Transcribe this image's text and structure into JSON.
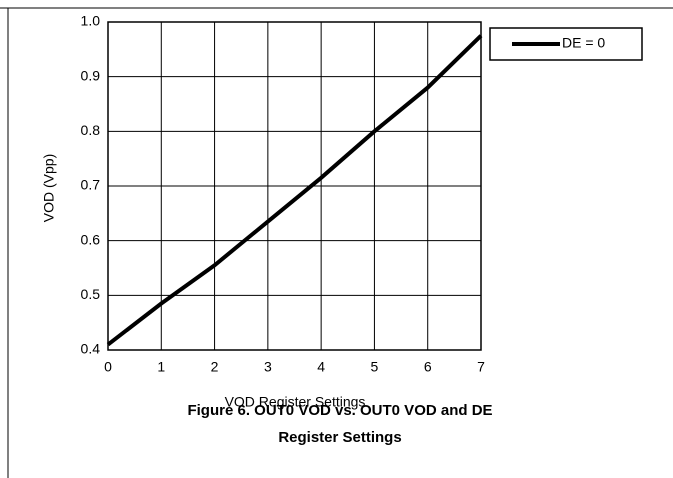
{
  "chart_data": {
    "type": "line",
    "title": "Figure 6. OUT0 VOD vs. OUT0 VOD and DE Register Settings",
    "xlabel": "VOD Register Settings",
    "ylabel": "VOD (Vpp)",
    "x": [
      0,
      1,
      2,
      3,
      4,
      5,
      6,
      7
    ],
    "series": [
      {
        "name": "DE = 0",
        "color": "#000000",
        "values": [
          0.41,
          0.485,
          0.555,
          0.635,
          0.715,
          0.8,
          0.88,
          0.975
        ]
      }
    ],
    "xlim": [
      0,
      7
    ],
    "xticks": [
      0,
      1,
      2,
      3,
      4,
      5,
      6,
      7
    ],
    "ylim": [
      0.4,
      1.0
    ],
    "yticks": [
      0.4,
      0.5,
      0.6,
      0.7,
      0.8,
      0.9,
      {
        "value": 1.0,
        "label": "1.0"
      }
    ],
    "grid": true,
    "legend": "upper right"
  }
}
